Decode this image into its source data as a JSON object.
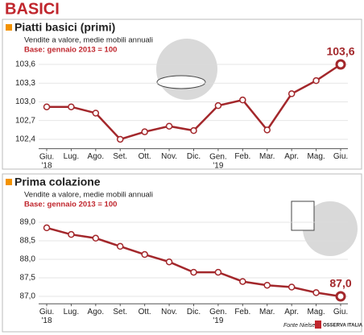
{
  "header": {
    "title": "BASICI"
  },
  "chart_data": [
    {
      "type": "line",
      "title": "Piatti basici (primi)",
      "subtitle": "Vendite a valore, medie mobili annuali",
      "note": "Base: gennaio 2013 = 100",
      "categories": [
        "Giu.\n'18",
        "Lug.",
        "Ago.",
        "Set.",
        "Ott.",
        "Nov.",
        "Dic.",
        "Gen.\n'19",
        "Feb.",
        "Mar.",
        "Apr.",
        "Mag.",
        "Giu."
      ],
      "values": [
        102.92,
        102.92,
        102.82,
        102.4,
        102.52,
        102.61,
        102.54,
        102.94,
        103.03,
        102.55,
        103.13,
        103.34,
        103.6
      ],
      "value_labels": [
        null,
        null,
        null,
        null,
        null,
        null,
        null,
        null,
        null,
        null,
        null,
        null,
        "103,6"
      ],
      "color": "#a3272b",
      "ylim": [
        102.25,
        103.75
      ],
      "yticks": [
        {
          "value": 102.4,
          "label": "102,4"
        },
        {
          "value": 102.7,
          "label": "102,7"
        },
        {
          "value": 103.0,
          "label": "103,0"
        },
        {
          "value": 103.3,
          "label": "103,3"
        },
        {
          "value": 103.6,
          "label": "103,6"
        }
      ],
      "grid": true
    },
    {
      "type": "line",
      "title": "Prima colazione",
      "subtitle": "Vendite a valore, medie mobili annuali",
      "note": "Base: gennaio 2013 = 100",
      "categories": [
        "Giu.\n'18",
        "Lug.",
        "Ago.",
        "Set.",
        "Ott.",
        "Nov.",
        "Dic.",
        "Gen.\n'19",
        "Feb.",
        "Mar.",
        "Apr.",
        "Mag.",
        "Giu."
      ],
      "values": [
        88.85,
        88.67,
        88.57,
        88.35,
        88.13,
        87.93,
        87.65,
        87.65,
        87.4,
        87.3,
        87.25,
        87.1,
        87.0
      ],
      "value_labels": [
        null,
        null,
        null,
        null,
        null,
        null,
        null,
        null,
        null,
        null,
        null,
        null,
        "87,0"
      ],
      "color": "#a3272b",
      "ylim": [
        86.8,
        89.2
      ],
      "yticks": [
        {
          "value": 87.0,
          "label": "87,0"
        },
        {
          "value": 87.5,
          "label": "87,5"
        },
        {
          "value": 88.0,
          "label": "88,0"
        },
        {
          "value": 88.5,
          "label": "88,5"
        },
        {
          "value": 89.0,
          "label": "89,0"
        }
      ],
      "grid": true
    }
  ],
  "footer": {
    "source": "Fonte Nielsen",
    "logo": "OSSERVA ITALIA"
  }
}
